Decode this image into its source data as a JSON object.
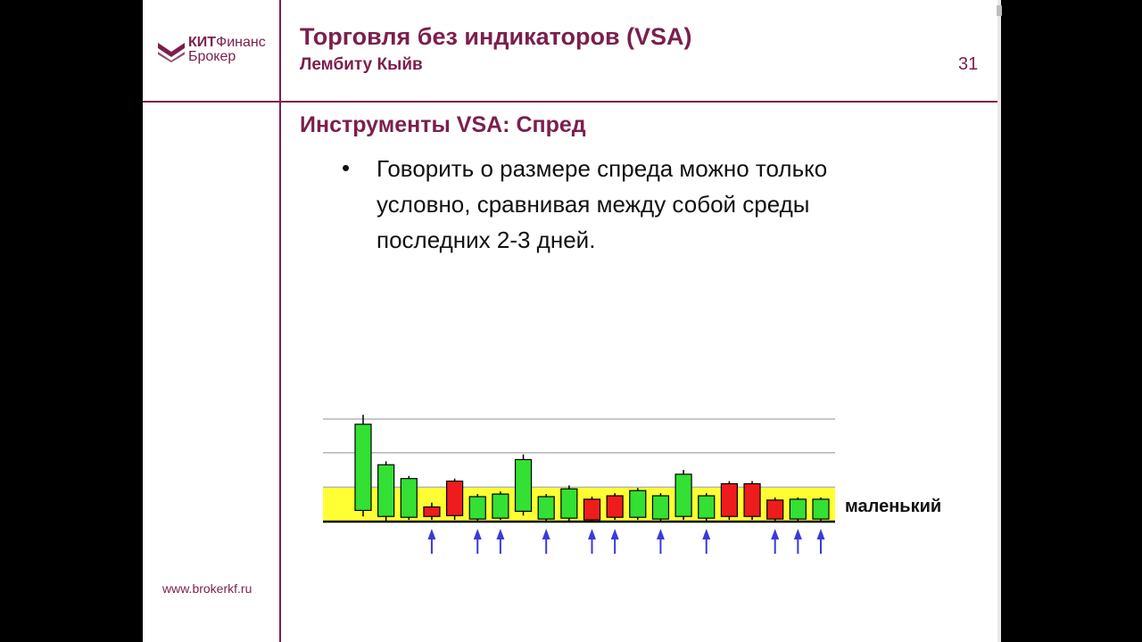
{
  "logo": {
    "brand_bold": "КИТ",
    "brand_rest": "Финанс",
    "line2": "Брокер"
  },
  "header": {
    "title": "Торговля без индикаторов (VSA)",
    "author": "Лембиту Кыйв",
    "slide_number": "31"
  },
  "section_title": "Инструменты VSA: Спред",
  "bullets": [
    {
      "marker": "•",
      "text": "Говорить о размере спреда можно только условно, сравнивая между собой среды последних 2-3 дней."
    }
  ],
  "footer": {
    "url": "www.brokerkf.ru"
  },
  "colors": {
    "accent": "#7b1f4d",
    "bull": "#33e033",
    "bear": "#ee1c1c",
    "band": "#ffff33",
    "arrow": "#3a3ad9"
  },
  "chart_data": {
    "type": "candlestick",
    "band_label": "маленький",
    "bars": [
      {
        "color": "green",
        "open": 13,
        "close": 113,
        "high": 124,
        "low": 6
      },
      {
        "color": "green",
        "open": 6,
        "close": 66,
        "high": 70,
        "low": 1
      },
      {
        "color": "green",
        "open": 5,
        "close": 50,
        "high": 53,
        "low": 2
      },
      {
        "color": "red",
        "open": 17,
        "close": 6,
        "high": 22,
        "low": 2
      },
      {
        "color": "red",
        "open": 47,
        "close": 7,
        "high": 50,
        "low": 2
      },
      {
        "color": "green",
        "open": 3,
        "close": 29,
        "high": 32,
        "low": 1
      },
      {
        "color": "green",
        "open": 4,
        "close": 32,
        "high": 35,
        "low": 2
      },
      {
        "color": "green",
        "open": 12,
        "close": 72,
        "high": 78,
        "low": 7
      },
      {
        "color": "green",
        "open": 3,
        "close": 29,
        "high": 32,
        "low": 1
      },
      {
        "color": "green",
        "open": 4,
        "close": 38,
        "high": 42,
        "low": 1
      },
      {
        "color": "red",
        "open": 26,
        "close": 2,
        "high": 29,
        "low": 1
      },
      {
        "color": "red",
        "open": 30,
        "close": 5,
        "high": 33,
        "low": 2
      },
      {
        "color": "green",
        "open": 5,
        "close": 36,
        "high": 39,
        "low": 2
      },
      {
        "color": "green",
        "open": 3,
        "close": 30,
        "high": 33,
        "low": 1
      },
      {
        "color": "green",
        "open": 6,
        "close": 55,
        "high": 60,
        "low": 2
      },
      {
        "color": "green",
        "open": 4,
        "close": 30,
        "high": 33,
        "low": 1
      },
      {
        "color": "red",
        "open": 44,
        "close": 6,
        "high": 47,
        "low": 2
      },
      {
        "color": "red",
        "open": 44,
        "close": 6,
        "high": 47,
        "low": 2
      },
      {
        "color": "red",
        "open": 25,
        "close": 3,
        "high": 28,
        "low": 1
      },
      {
        "color": "green",
        "open": 3,
        "close": 26,
        "high": 28,
        "low": 1
      },
      {
        "color": "green",
        "open": 3,
        "close": 26,
        "high": 28,
        "low": 1
      }
    ],
    "reference_lines": [
      0,
      40,
      80,
      119
    ],
    "band": [
      0,
      40
    ],
    "arrows_at": [
      3,
      5,
      6,
      8,
      10,
      11,
      13,
      15,
      18,
      19,
      20
    ]
  }
}
